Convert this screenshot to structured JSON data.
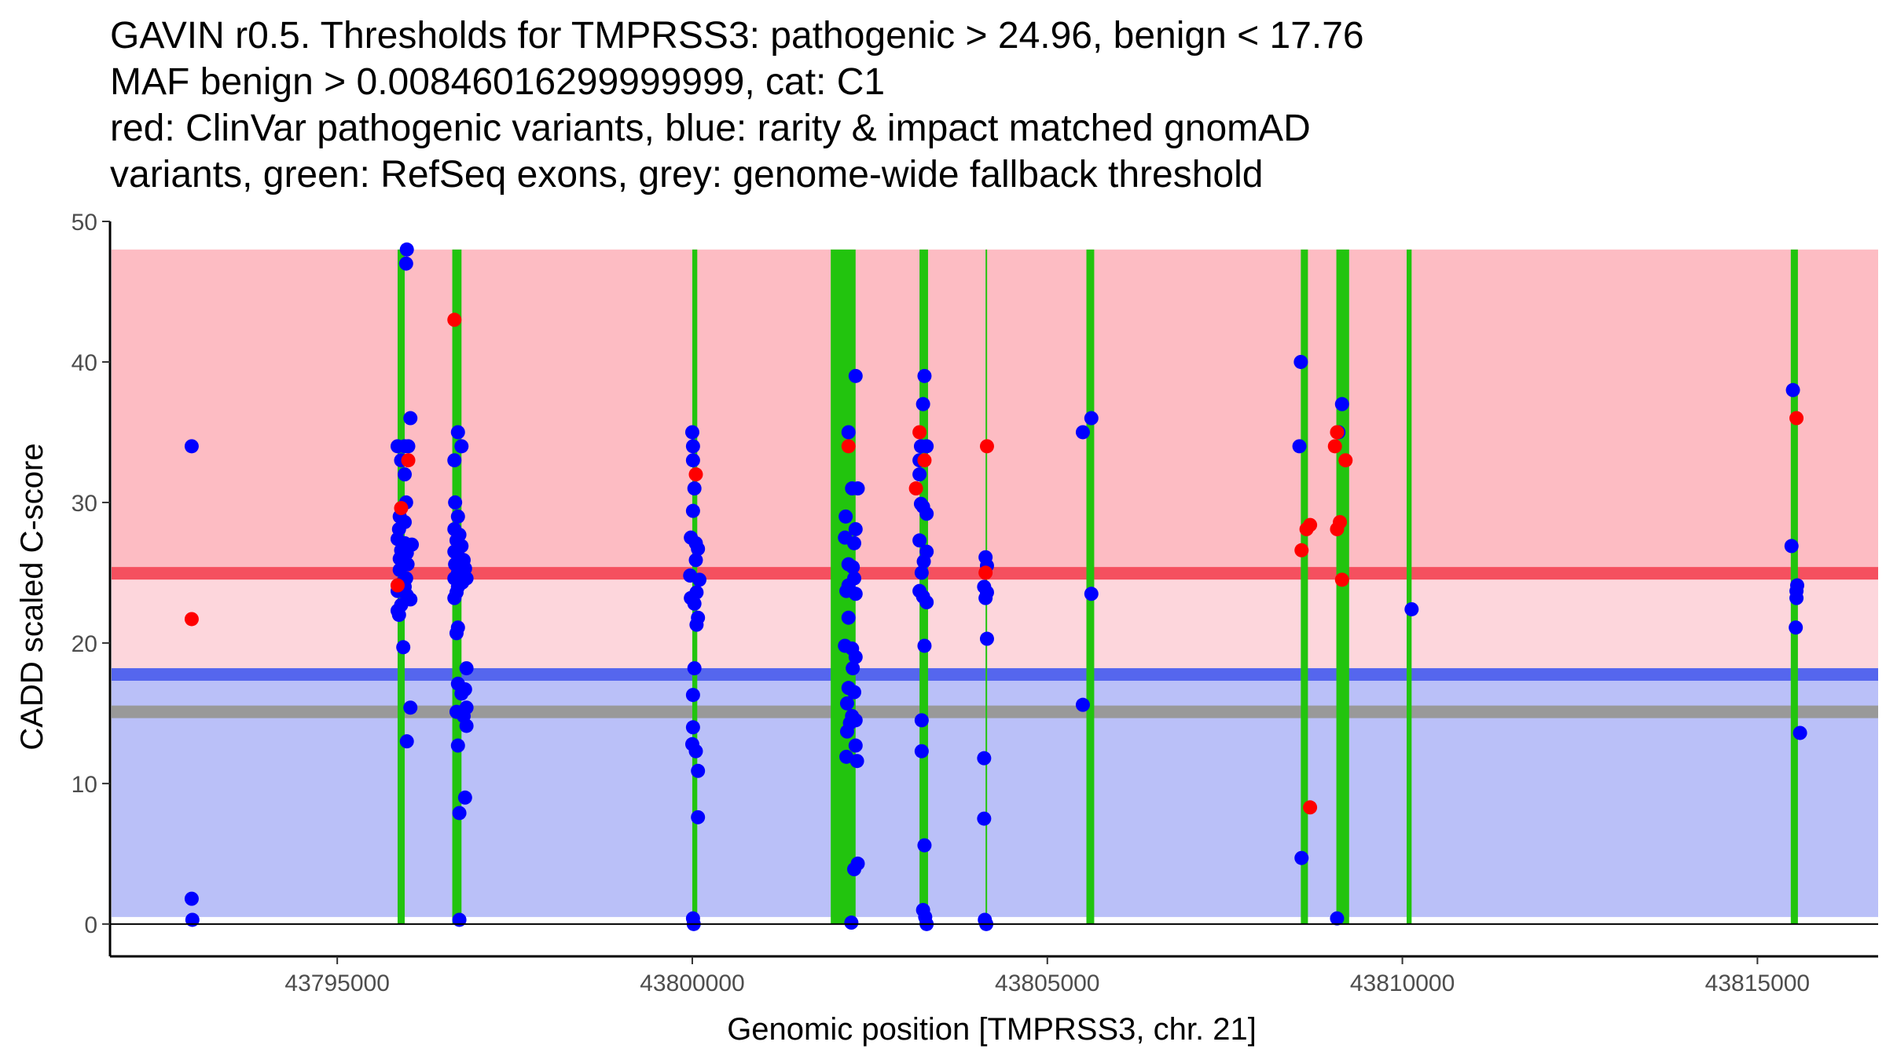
{
  "chart_data": {
    "type": "scatter",
    "title_lines": [
      "GAVIN r0.5. Thresholds for TMPRSS3: pathogenic > 24.96, benign < 17.76",
      "MAF benign > 0.00846016299999999, cat: C1",
      "red: ClinVar pathogenic variants, blue: rarity & impact matched gnomAD",
      "variants, green: RefSeq exons, grey: genome-wide fallback threshold"
    ],
    "xlabel": "Genomic position [TMPRSS3, chr. 21]",
    "ylabel": "CADD scaled C-score",
    "xlim": [
      43791800,
      43816700
    ],
    "ylim": [
      -2.3,
      50
    ],
    "x_ticks": [
      43795000,
      43800000,
      43805000,
      43810000,
      43815000
    ],
    "x_tick_labels": [
      "43795000",
      "43800000",
      "43805000",
      "43810000",
      "43815000"
    ],
    "y_ticks": [
      0,
      10,
      20,
      30,
      40,
      50
    ],
    "y_tick_labels": [
      "0",
      "10",
      "20",
      "30",
      "40",
      "50"
    ],
    "colors": {
      "pathogenic_zone": "#fdbcc3",
      "mid_zone": "#fdd6dc",
      "benign_zone": "#bac0f8",
      "pathogenic_line": "#f5505f",
      "benign_line": "#5566ee",
      "fallback_line": "#999999",
      "exon": "#22c40e",
      "pathogenic_point": "#ff0000",
      "benign_point": "#0000ff"
    },
    "zones": {
      "pathogenic": [
        24.96,
        48
      ],
      "mid": [
        17.76,
        24.96
      ],
      "benign": [
        0.5,
        17.76
      ]
    },
    "thresholds": {
      "pathogenic": 24.96,
      "benign": 17.76,
      "fallback": 15.1
    },
    "exons": [
      [
        43795850,
        43795950
      ],
      [
        43796620,
        43796750
      ],
      [
        43800000,
        43800070
      ],
      [
        43801950,
        43802300
      ],
      [
        43803200,
        43803320
      ],
      [
        43804130,
        43804150
      ],
      [
        43805550,
        43805660
      ],
      [
        43808570,
        43808670
      ],
      [
        43809070,
        43809250
      ],
      [
        43810060,
        43810130
      ],
      [
        43815470,
        43815570
      ]
    ],
    "series": [
      {
        "name": "ClinVar pathogenic variants",
        "color": "#ff0000",
        "points": [
          [
            43792950,
            21.7
          ],
          [
            43795850,
            24.1
          ],
          [
            43795900,
            29.6
          ],
          [
            43796000,
            33
          ],
          [
            43796650,
            43
          ],
          [
            43800050,
            32
          ],
          [
            43802200,
            34
          ],
          [
            43803200,
            35
          ],
          [
            43803150,
            31
          ],
          [
            43803270,
            33
          ],
          [
            43804130,
            25
          ],
          [
            43804150,
            34
          ],
          [
            43808580,
            26.6
          ],
          [
            43808650,
            28.1
          ],
          [
            43808700,
            28.4
          ],
          [
            43808700,
            8.3
          ],
          [
            43809080,
            35
          ],
          [
            43809050,
            34
          ],
          [
            43809080,
            28.1
          ],
          [
            43809120,
            28.6
          ],
          [
            43809150,
            24.5
          ],
          [
            43809200,
            33
          ],
          [
            43815550,
            36
          ]
        ]
      },
      {
        "name": "rarity & impact matched gnomAD variants",
        "color": "#0000ff",
        "points": [
          [
            43792950,
            34
          ],
          [
            43792950,
            1.8
          ],
          [
            43792960,
            0.3
          ],
          [
            43795980,
            48
          ],
          [
            43795970,
            47
          ],
          [
            43796030,
            36
          ],
          [
            43795850,
            34
          ],
          [
            43795950,
            34
          ],
          [
            43796000,
            34
          ],
          [
            43795900,
            33
          ],
          [
            43795950,
            32
          ],
          [
            43795970,
            30
          ],
          [
            43795880,
            29
          ],
          [
            43795950,
            28.6
          ],
          [
            43795870,
            28.1
          ],
          [
            43795850,
            27.4
          ],
          [
            43795950,
            27.1
          ],
          [
            43796050,
            27
          ],
          [
            43795900,
            26.6
          ],
          [
            43795980,
            26.4
          ],
          [
            43795880,
            26
          ],
          [
            43795990,
            25.6
          ],
          [
            43795880,
            25.2
          ],
          [
            43795970,
            24.6
          ],
          [
            43795920,
            24.3
          ],
          [
            43795950,
            24
          ],
          [
            43795850,
            23.7
          ],
          [
            43795980,
            23.4
          ],
          [
            43796030,
            23.1
          ],
          [
            43795900,
            22.7
          ],
          [
            43795850,
            22.3
          ],
          [
            43795870,
            22
          ],
          [
            43795930,
            19.7
          ],
          [
            43796030,
            15.4
          ],
          [
            43795980,
            13
          ],
          [
            43796700,
            35
          ],
          [
            43796650,
            33
          ],
          [
            43796750,
            34
          ],
          [
            43796660,
            30
          ],
          [
            43796700,
            29
          ],
          [
            43796650,
            28.1
          ],
          [
            43796720,
            27.7
          ],
          [
            43796680,
            27.3
          ],
          [
            43796750,
            26.9
          ],
          [
            43796650,
            26.5
          ],
          [
            43796700,
            26.2
          ],
          [
            43796780,
            25.9
          ],
          [
            43796660,
            25.6
          ],
          [
            43796800,
            25.3
          ],
          [
            43796700,
            25
          ],
          [
            43796650,
            24.6
          ],
          [
            43796760,
            24.3
          ],
          [
            43796820,
            24.6
          ],
          [
            43796700,
            24
          ],
          [
            43796680,
            23.6
          ],
          [
            43796650,
            23.2
          ],
          [
            43796700,
            21.1
          ],
          [
            43796680,
            20.7
          ],
          [
            43796820,
            18.2
          ],
          [
            43796700,
            17.1
          ],
          [
            43796800,
            16.7
          ],
          [
            43796750,
            16.4
          ],
          [
            43796820,
            15.4
          ],
          [
            43796680,
            15.1
          ],
          [
            43796780,
            14.8
          ],
          [
            43796820,
            14.1
          ],
          [
            43796700,
            12.7
          ],
          [
            43796800,
            9
          ],
          [
            43796720,
            7.9
          ],
          [
            43796720,
            0.3
          ],
          [
            43800000,
            35
          ],
          [
            43800010,
            34
          ],
          [
            43800010,
            33
          ],
          [
            43800030,
            31
          ],
          [
            43800010,
            29.4
          ],
          [
            43799980,
            27.5
          ],
          [
            43800050,
            27.1
          ],
          [
            43800080,
            26.7
          ],
          [
            43800050,
            25.9
          ],
          [
            43799970,
            24.8
          ],
          [
            43800100,
            24.5
          ],
          [
            43800060,
            23.6
          ],
          [
            43799980,
            23.2
          ],
          [
            43800030,
            22.8
          ],
          [
            43800080,
            21.8
          ],
          [
            43800060,
            21.3
          ],
          [
            43800030,
            18.2
          ],
          [
            43800010,
            16.3
          ],
          [
            43800010,
            14
          ],
          [
            43800000,
            12.8
          ],
          [
            43800050,
            12.3
          ],
          [
            43800080,
            10.9
          ],
          [
            43800080,
            7.6
          ],
          [
            43800010,
            0.4
          ],
          [
            43800020,
            0
          ],
          [
            43802300,
            39
          ],
          [
            43802200,
            35
          ],
          [
            43802250,
            31
          ],
          [
            43802330,
            31
          ],
          [
            43802160,
            29
          ],
          [
            43802300,
            28.1
          ],
          [
            43802150,
            27.5
          ],
          [
            43802280,
            27.1
          ],
          [
            43802200,
            25.6
          ],
          [
            43802260,
            25.4
          ],
          [
            43802280,
            24.6
          ],
          [
            43802200,
            24.1
          ],
          [
            43802170,
            23.7
          ],
          [
            43802300,
            23.5
          ],
          [
            43802200,
            21.8
          ],
          [
            43802150,
            19.8
          ],
          [
            43802250,
            19.6
          ],
          [
            43802300,
            19
          ],
          [
            43802260,
            18.2
          ],
          [
            43802200,
            16.8
          ],
          [
            43802280,
            16.5
          ],
          [
            43802180,
            15.7
          ],
          [
            43802250,
            14.8
          ],
          [
            43802300,
            14.5
          ],
          [
            43802220,
            14.3
          ],
          [
            43802180,
            13.7
          ],
          [
            43802300,
            12.7
          ],
          [
            43802170,
            11.9
          ],
          [
            43802320,
            11.6
          ],
          [
            43802330,
            4.3
          ],
          [
            43802280,
            3.9
          ],
          [
            43802240,
            0.1
          ],
          [
            43803270,
            39
          ],
          [
            43803250,
            37
          ],
          [
            43803220,
            34
          ],
          [
            43803300,
            34
          ],
          [
            43803200,
            33
          ],
          [
            43803200,
            32
          ],
          [
            43803250,
            29.7
          ],
          [
            43803300,
            29.2
          ],
          [
            43803220,
            29.9
          ],
          [
            43803200,
            27.3
          ],
          [
            43803300,
            26.5
          ],
          [
            43803260,
            25.8
          ],
          [
            43803230,
            25
          ],
          [
            43803200,
            23.7
          ],
          [
            43803250,
            23.3
          ],
          [
            43803300,
            22.9
          ],
          [
            43803270,
            19.8
          ],
          [
            43803230,
            14.5
          ],
          [
            43803230,
            12.3
          ],
          [
            43803270,
            5.6
          ],
          [
            43803250,
            1
          ],
          [
            43803280,
            0.5
          ],
          [
            43803300,
            0
          ],
          [
            43804130,
            26.1
          ],
          [
            43804150,
            25.5
          ],
          [
            43804110,
            24
          ],
          [
            43804150,
            23.6
          ],
          [
            43804130,
            23.2
          ],
          [
            43804150,
            20.3
          ],
          [
            43804110,
            11.8
          ],
          [
            43804110,
            7.5
          ],
          [
            43804120,
            0.3
          ],
          [
            43804140,
            0
          ],
          [
            43805500,
            35
          ],
          [
            43805620,
            36
          ],
          [
            43805620,
            23.5
          ],
          [
            43805500,
            15.6
          ],
          [
            43808570,
            40
          ],
          [
            43808550,
            34
          ],
          [
            43808580,
            4.7
          ],
          [
            43809150,
            37
          ],
          [
            43809100,
            35
          ],
          [
            43809080,
            0.4
          ],
          [
            43810130,
            22.4
          ],
          [
            43815500,
            38
          ],
          [
            43815480,
            26.9
          ],
          [
            43815560,
            24.1
          ],
          [
            43815550,
            23.7
          ],
          [
            43815550,
            23.2
          ],
          [
            43815540,
            21.1
          ],
          [
            43815600,
            13.6
          ]
        ]
      }
    ]
  }
}
